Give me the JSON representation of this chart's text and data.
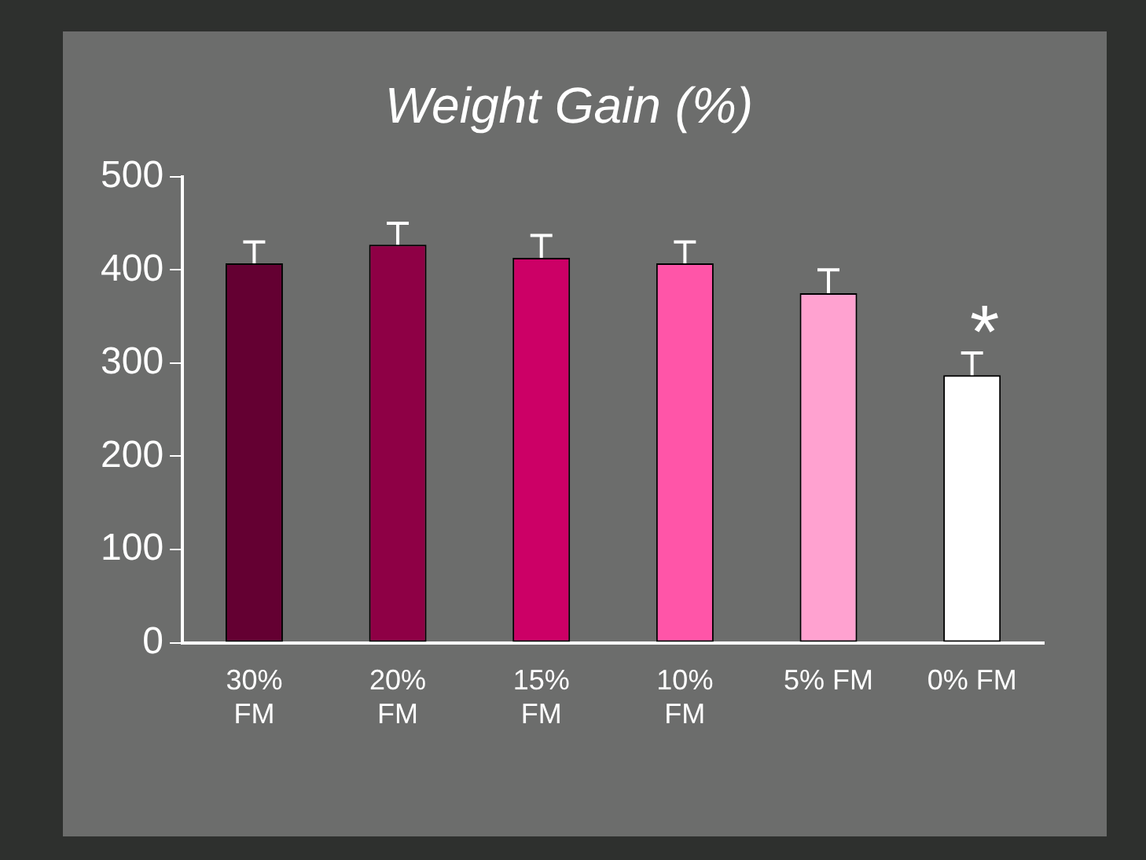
{
  "chart_data": {
    "type": "bar",
    "title": "Weight Gain (%)",
    "categories": [
      "30% FM",
      "20% FM",
      "15% FM",
      "10% FM",
      "5% FM",
      "0% FM"
    ],
    "values": [
      407,
      427,
      413,
      407,
      375,
      287
    ],
    "colors": [
      "#640032",
      "#8e0045",
      "#cc0066",
      "#ff55a8",
      "#ffa2d0",
      "#ffffff"
    ],
    "errors": [
      [
        407,
        430
      ],
      [
        427,
        450
      ],
      [
        413,
        437
      ],
      [
        407,
        430
      ],
      [
        375,
        400
      ],
      [
        287,
        311
      ]
    ],
    "ylim": [
      0,
      500
    ],
    "yticks": [
      0,
      100,
      200,
      300,
      400,
      500
    ],
    "grid": false,
    "legend": false,
    "annotations": [
      "*"
    ]
  }
}
